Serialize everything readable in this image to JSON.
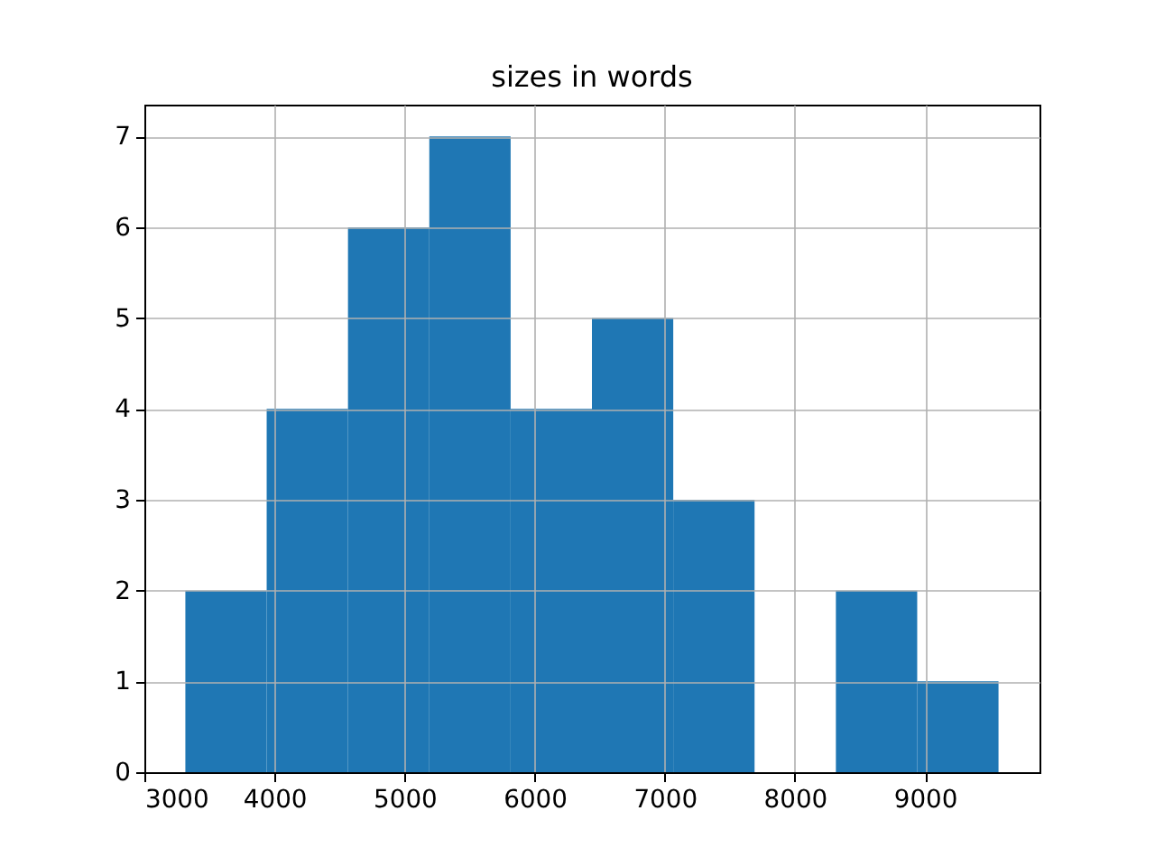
{
  "chart_data": {
    "type": "histogram",
    "title": "sizes in words",
    "bins": [
      3315,
      3940,
      4565,
      5190,
      5815,
      6440,
      7065,
      7690,
      8315,
      8940,
      9565
    ],
    "values": [
      2,
      4,
      6,
      7,
      4,
      5,
      3,
      0,
      2,
      1
    ],
    "color": "#1f77b4",
    "xlim": [
      3000,
      9880
    ],
    "xticks": [
      3000,
      4000,
      5000,
      6000,
      7000,
      8000,
      9000
    ],
    "ylim": [
      0,
      7.35
    ],
    "yticks": [
      0,
      1,
      2,
      3,
      4,
      5,
      6,
      7
    ],
    "grid": true
  }
}
